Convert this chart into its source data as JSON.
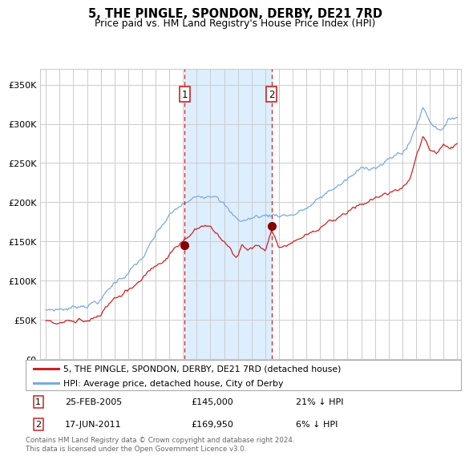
{
  "title": "5, THE PINGLE, SPONDON, DERBY, DE21 7RD",
  "subtitle": "Price paid vs. HM Land Registry's House Price Index (HPI)",
  "legend_line1": "5, THE PINGLE, SPONDON, DERBY, DE21 7RD (detached house)",
  "legend_line2": "HPI: Average price, detached house, City of Derby",
  "footnote": "Contains HM Land Registry data © Crown copyright and database right 2024.\nThis data is licensed under the Open Government Licence v3.0.",
  "transaction1_date": "25-FEB-2005",
  "transaction1_price": 145000,
  "transaction1_hpi_pct": "21% ↓ HPI",
  "transaction2_date": "17-JUN-2011",
  "transaction2_price": 169950,
  "transaction2_hpi_pct": "6% ↓ HPI",
  "line_color_red": "#cc2222",
  "line_color_blue": "#7aaadd",
  "dot_color": "#880000",
  "shade_color": "#ddeeff",
  "dashed_line_color": "#cc2222",
  "grid_color": "#cccccc",
  "background_color": "#ffffff",
  "ylim": [
    0,
    370000
  ],
  "yticks": [
    0,
    50000,
    100000,
    150000,
    200000,
    250000,
    300000,
    350000
  ],
  "ytick_labels": [
    "£0",
    "£50K",
    "£100K",
    "£150K",
    "£200K",
    "£250K",
    "£300K",
    "£350K"
  ],
  "transaction1_x": 2005.12,
  "transaction2_x": 2011.46,
  "transaction1_y": 145000,
  "transaction2_y": 169950,
  "xlim_left": 1994.6,
  "xlim_right": 2025.3
}
